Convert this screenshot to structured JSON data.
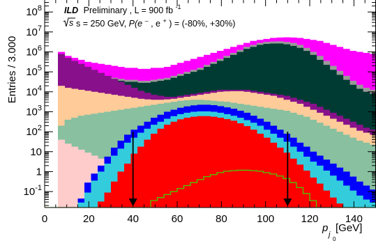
{
  "chart_data": {
    "type": "area",
    "stacking": "overlay-cumulative",
    "title": "",
    "annotation": {
      "experiment": "ILD",
      "status": "Preliminary",
      "lumi_prefix": ", L = ",
      "lumi": "900 fb",
      "lumi_exp": "-1",
      "line2_energy": "s = 250 GeV, ",
      "line2_pol_symbol": "P(e",
      "line2_pol_rest": ") = (-80%, +30%)"
    },
    "xlabel": "p",
    "xlabel_subscript": "j",
    "xlabel_subsub": "0",
    "xlabel_unit": " [GeV]",
    "ylabel": "Entries / 3.000",
    "xlim": [
      0,
      150
    ],
    "ylim_log10": [
      -1.8,
      8.6
    ],
    "log_y": true,
    "grid": false,
    "x_ticks": [
      0,
      20,
      40,
      60,
      80,
      100,
      120,
      140
    ],
    "x_tick_labels": [
      "0",
      "20",
      "40",
      "60",
      "80",
      "100",
      "120",
      "140"
    ],
    "y_ticks": [
      {
        "label": "10",
        "exp": "-1",
        "v": -1
      },
      {
        "label": "1",
        "exp": "",
        "v": 0
      },
      {
        "label": "10",
        "exp": "",
        "v": 1
      },
      {
        "label": "10",
        "exp": "2",
        "v": 2
      },
      {
        "label": "10",
        "exp": "3",
        "v": 3
      },
      {
        "label": "10",
        "exp": "4",
        "v": 4
      },
      {
        "label": "10",
        "exp": "5",
        "v": 5
      },
      {
        "label": "10",
        "exp": "6",
        "v": 6
      },
      {
        "label": "10",
        "exp": "7",
        "v": 7
      },
      {
        "label": "10",
        "exp": "8",
        "v": 8
      }
    ],
    "bin_width": 3,
    "x_start": 0,
    "series": [
      {
        "color": "#ff00ff",
        "log10_values": [
          -1.8,
          -1.8,
          6.0,
          5.8,
          5.7,
          5.6,
          5.5,
          5.45,
          5.4,
          5.35,
          5.3,
          5.25,
          5.2,
          5.2,
          5.15,
          5.15,
          5.2,
          5.2,
          5.25,
          5.35,
          5.45,
          5.55,
          5.65,
          5.75,
          5.85,
          5.95,
          6.05,
          6.15,
          6.25,
          6.35,
          6.45,
          6.55,
          6.6,
          6.65,
          6.7,
          6.72,
          6.73,
          6.72,
          6.7,
          6.65,
          6.6,
          6.55,
          6.45,
          6.35,
          6.25,
          6.15,
          6.05,
          6.0,
          5.95,
          5.9
        ]
      },
      {
        "color": "#999999",
        "log10_values": [
          -1.8,
          -1.8,
          5.4,
          5.2,
          5.1,
          5.0,
          4.9,
          4.85,
          4.8,
          4.75,
          4.7,
          4.65,
          4.6,
          4.6,
          4.55,
          4.55,
          4.6,
          4.65,
          4.7,
          4.8,
          4.9,
          5.0,
          5.1,
          5.2,
          5.35,
          5.5,
          5.65,
          5.8,
          5.95,
          6.1,
          6.25,
          6.35,
          6.45,
          6.5,
          6.52,
          6.53,
          6.5,
          6.45,
          6.35,
          6.2,
          6.0,
          5.8,
          5.55,
          5.3,
          5.05,
          4.8,
          4.55,
          4.35,
          4.2,
          4.1
        ]
      },
      {
        "color": "#003b33",
        "log10_values": [
          -1.8,
          -1.8,
          5.3,
          5.1,
          5.0,
          4.9,
          4.8,
          4.75,
          4.7,
          4.65,
          4.6,
          4.55,
          4.5,
          4.5,
          4.45,
          4.45,
          4.5,
          4.55,
          4.6,
          4.7,
          4.8,
          4.9,
          5.0,
          5.1,
          5.25,
          5.4,
          5.55,
          5.7,
          5.85,
          6.0,
          6.15,
          6.25,
          6.35,
          6.4,
          6.42,
          6.42,
          6.38,
          6.3,
          6.2,
          6.05,
          5.85,
          5.6,
          5.35,
          5.1,
          4.85,
          4.6,
          4.35,
          4.15,
          4.0,
          3.9
        ]
      },
      {
        "color": "#88118b",
        "log10_values": [
          -1.8,
          -1.8,
          5.9,
          5.7,
          5.55,
          5.4,
          5.25,
          5.1,
          4.95,
          4.8,
          4.65,
          4.5,
          4.35,
          4.2,
          4.05,
          3.95,
          3.85,
          3.8,
          3.75,
          3.75,
          3.8,
          3.85,
          3.9,
          3.95,
          4.0,
          4.05,
          4.1,
          4.1,
          4.1,
          4.1,
          4.1,
          4.05,
          4.0,
          3.95,
          3.9,
          3.85,
          3.8,
          3.7,
          3.6,
          3.5,
          3.4,
          3.25,
          3.1,
          2.95,
          2.8,
          2.65,
          2.5,
          2.35,
          2.2,
          2.1
        ]
      },
      {
        "color": "#ffcc99",
        "log10_values": [
          -1.8,
          -1.8,
          4.3,
          4.2,
          4.15,
          4.1,
          4.05,
          4.0,
          3.95,
          3.9,
          3.85,
          3.8,
          3.75,
          3.7,
          3.65,
          3.62,
          3.6,
          3.6,
          3.62,
          3.65,
          3.7,
          3.75,
          3.8,
          3.85,
          3.9,
          3.95,
          4.0,
          4.02,
          4.03,
          4.03,
          4.0,
          3.95,
          3.9,
          3.85,
          3.8,
          3.7,
          3.6,
          3.5,
          3.4,
          3.25,
          3.1,
          2.95,
          2.8,
          2.65,
          2.5,
          2.35,
          2.2,
          2.05,
          1.95,
          1.85
        ]
      },
      {
        "color": "#88c0a0",
        "log10_values": [
          -1.8,
          -1.8,
          2.3,
          2.6,
          2.7,
          2.8,
          2.85,
          2.9,
          2.95,
          3.0,
          3.05,
          3.1,
          3.15,
          3.2,
          3.25,
          3.3,
          3.35,
          3.4,
          3.45,
          3.5,
          3.55,
          3.58,
          3.6,
          3.6,
          3.58,
          3.55,
          3.52,
          3.5,
          3.45,
          3.4,
          3.35,
          3.3,
          3.25,
          3.2,
          3.15,
          3.1,
          3.05,
          2.95,
          2.85,
          2.75,
          2.6,
          2.45,
          2.3,
          2.15,
          2.0,
          1.85,
          1.7,
          1.55,
          1.45,
          1.35
        ]
      },
      {
        "color": "#ffcccc",
        "log10_values": [
          -1.8,
          -1.8,
          1.6,
          1.4,
          1.25,
          1.1,
          0.95,
          0.8,
          0.65,
          0.5,
          0.35,
          0.2,
          0.05,
          -0.1,
          -0.25,
          -0.4,
          -0.55,
          -0.7,
          -0.85,
          -1.0,
          -1.15,
          -1.3,
          -1.45,
          -1.6,
          -1.8,
          -1.8,
          -1.8,
          -1.8,
          -1.8,
          -1.8,
          -1.8,
          -1.8,
          -1.8,
          -1.8,
          -1.8,
          -1.8,
          -1.8,
          -1.8,
          -1.8,
          -1.8,
          -1.8,
          -1.8,
          -1.8,
          -1.8,
          -1.8,
          -1.8,
          -1.8,
          -1.8,
          -1.8,
          -1.8
        ]
      },
      {
        "color": "#0000ff",
        "log10_values": [
          -1.8,
          -1.8,
          -1.8,
          -1.8,
          -1.8,
          -1.35,
          -0.55,
          -0.1,
          0.3,
          0.75,
          1.2,
          1.55,
          1.85,
          2.1,
          2.3,
          2.5,
          2.7,
          2.85,
          3.0,
          3.1,
          3.2,
          3.27,
          3.32,
          3.35,
          3.35,
          3.33,
          3.28,
          3.22,
          3.15,
          3.05,
          2.95,
          2.8,
          2.65,
          2.5,
          2.3,
          2.1,
          1.9,
          1.7,
          1.45,
          1.25,
          1.0,
          0.8,
          0.6,
          0.4,
          0.2,
          0.0,
          -0.25,
          -0.5,
          -0.7,
          -0.9
        ]
      },
      {
        "color": "#33ccdd",
        "log10_values": [
          -1.8,
          -1.8,
          -1.8,
          -1.8,
          -1.8,
          -1.55,
          -1.05,
          -0.45,
          0.0,
          0.4,
          0.8,
          1.15,
          1.45,
          1.7,
          1.95,
          2.15,
          2.35,
          2.5,
          2.65,
          2.78,
          2.88,
          2.95,
          3.0,
          3.02,
          3.02,
          3.0,
          2.95,
          2.88,
          2.8,
          2.7,
          2.58,
          2.45,
          2.3,
          2.1,
          1.9,
          1.7,
          1.5,
          1.25,
          1.0,
          0.75,
          0.5,
          0.3,
          0.05,
          -0.2,
          -0.45,
          -0.7,
          -0.95,
          -1.2,
          -1.4,
          -1.55
        ]
      },
      {
        "color": "#ff0000",
        "log10_values": [
          -1.8,
          -1.8,
          -1.8,
          -1.8,
          -1.8,
          -1.8,
          -1.8,
          -1.8,
          -1.5,
          -1.05,
          -0.5,
          0.0,
          0.4,
          0.9,
          1.25,
          1.6,
          1.9,
          2.15,
          2.35,
          2.5,
          2.62,
          2.7,
          2.75,
          2.78,
          2.78,
          2.75,
          2.7,
          2.63,
          2.55,
          2.42,
          2.28,
          2.1,
          1.9,
          1.7,
          1.45,
          1.2,
          0.95,
          0.65,
          0.35,
          0.05,
          -0.3,
          -0.6,
          -0.95,
          -1.3,
          -1.6,
          -1.8,
          -1.8,
          -1.8,
          -1.8,
          -1.8
        ]
      }
    ],
    "signal_line": {
      "color": "#44cc00",
      "log10_values": [
        -1.8,
        -1.8,
        -1.8,
        -1.8,
        -1.8,
        -1.8,
        -1.8,
        -1.8,
        -1.8,
        -1.8,
        -1.8,
        -1.8,
        -1.8,
        -1.8,
        -1.8,
        -1.8,
        -1.45,
        -1.3,
        -1.15,
        -1.0,
        -0.85,
        -0.7,
        -0.55,
        -0.4,
        -0.25,
        -0.15,
        -0.05,
        0.02,
        0.05,
        0.07,
        0.07,
        0.05,
        0.02,
        -0.05,
        -0.12,
        -0.22,
        -0.35,
        -0.55,
        -0.8,
        -1.1,
        -1.45,
        -1.8,
        -1.8,
        -1.8,
        -1.8,
        -1.8,
        -1.8,
        -1.8,
        -1.8,
        -1.8
      ]
    },
    "cut_arrows": [
      {
        "x": 40,
        "from_log10": 2.0,
        "to_log10": -1.7
      },
      {
        "x": 110,
        "from_log10": 2.0,
        "to_log10": -1.7
      }
    ]
  }
}
